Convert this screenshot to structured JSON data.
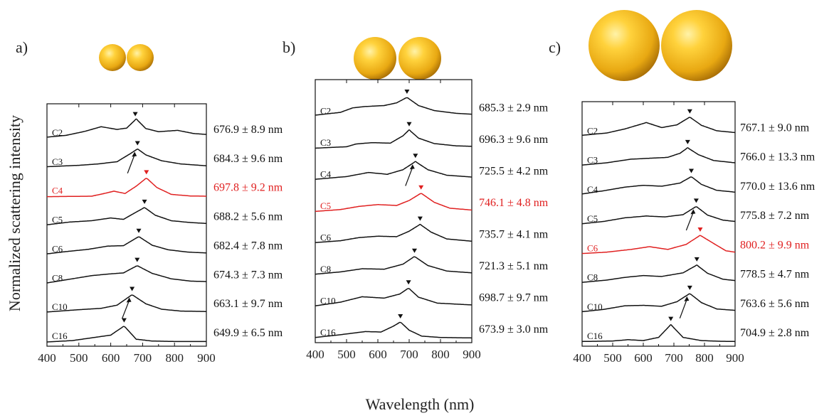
{
  "figure": {
    "ylabel": "Normalized scattering intensity",
    "xlabel": "Wavelength (nm)"
  },
  "colors": {
    "normal": "#111111",
    "highlight": "#e02020",
    "sphere_light": "#ffe680",
    "sphere_mid": "#f2b820",
    "sphere_dark": "#b07808"
  },
  "chart_data": [
    {
      "type": "line",
      "panel_label": "a)",
      "xlim": [
        400,
        900
      ],
      "xticks": [
        400,
        500,
        600,
        700,
        800,
        900
      ],
      "ylabel": "Normalized scattering intensity",
      "xlabel": "Wavelength (nm)",
      "grid": false,
      "series": [
        {
          "name": "C2",
          "peak_label": "676.9 ± 8.9 nm",
          "peak": 677,
          "highlight": false,
          "arrow": false,
          "x": [
            400,
            460,
            520,
            570,
            620,
            650,
            680,
            710,
            750,
            810,
            860,
            900
          ],
          "y": [
            0.06,
            0.14,
            0.32,
            0.52,
            0.4,
            0.46,
            0.86,
            0.44,
            0.3,
            0.36,
            0.22,
            0.18
          ]
        },
        {
          "name": "C3",
          "peak_label": "684.3 ± 9.6 nm",
          "peak": 684,
          "highlight": false,
          "arrow": true,
          "x": [
            400,
            500,
            560,
            620,
            660,
            684,
            710,
            760,
            820,
            900
          ],
          "y": [
            0.04,
            0.1,
            0.16,
            0.26,
            0.6,
            0.82,
            0.56,
            0.3,
            0.16,
            0.08
          ]
        },
        {
          "name": "C4",
          "peak_label": "697.8 ± 9.2 nm",
          "peak": 712,
          "highlight": true,
          "arrow": false,
          "x": [
            400,
            540,
            580,
            610,
            645,
            680,
            712,
            745,
            790,
            850,
            900
          ],
          "y": [
            0.0,
            0.02,
            0.14,
            0.24,
            0.14,
            0.46,
            0.82,
            0.4,
            0.1,
            0.03,
            0.02
          ]
        },
        {
          "name": "C5",
          "peak_label": "688.2 ± 5.6 nm",
          "peak": 706,
          "highlight": false,
          "arrow": false,
          "x": [
            400,
            470,
            540,
            600,
            640,
            670,
            706,
            740,
            790,
            850,
            900
          ],
          "y": [
            0.04,
            0.16,
            0.22,
            0.34,
            0.28,
            0.52,
            0.8,
            0.46,
            0.22,
            0.14,
            0.1
          ]
        },
        {
          "name": "C6",
          "peak_label": "682.4 ± 7.8 nm",
          "peak": 688,
          "highlight": false,
          "arrow": false,
          "x": [
            400,
            460,
            530,
            590,
            640,
            688,
            730,
            780,
            840,
            900
          ],
          "y": [
            0.04,
            0.14,
            0.24,
            0.38,
            0.4,
            0.8,
            0.42,
            0.22,
            0.12,
            0.08
          ]
        },
        {
          "name": "C8",
          "peak_label": "674.3 ± 7.3 nm",
          "peak": 683,
          "highlight": false,
          "arrow": false,
          "x": [
            400,
            470,
            540,
            600,
            640,
            683,
            730,
            790,
            850,
            900
          ],
          "y": [
            0.04,
            0.2,
            0.36,
            0.44,
            0.48,
            0.8,
            0.46,
            0.22,
            0.12,
            0.1
          ]
        },
        {
          "name": "C10",
          "peak_label": "663.1 ± 9.7 nm",
          "peak": 667,
          "highlight": false,
          "arrow": true,
          "x": [
            400,
            500,
            570,
            620,
            667,
            710,
            760,
            820,
            900
          ],
          "y": [
            0.04,
            0.14,
            0.2,
            0.34,
            0.8,
            0.4,
            0.16,
            0.08,
            0.06
          ]
        },
        {
          "name": "C16",
          "peak_label": "649.9 ± 6.5 nm",
          "peak": 642,
          "highlight": false,
          "arrow": false,
          "x": [
            400,
            480,
            540,
            600,
            642,
            680,
            730,
            800,
            900
          ],
          "y": [
            0.0,
            0.06,
            0.18,
            0.3,
            0.7,
            0.12,
            0.04,
            0.02,
            0.02
          ]
        }
      ]
    },
    {
      "type": "line",
      "panel_label": "b)",
      "xlim": [
        400,
        900
      ],
      "xticks": [
        400,
        500,
        600,
        700,
        800,
        900
      ],
      "ylabel": "Normalized scattering intensity",
      "xlabel": "Wavelength (nm)",
      "grid": false,
      "series": [
        {
          "name": "C2",
          "peak_label": "685.3 ± 2.9 nm",
          "peak": 693,
          "highlight": false,
          "arrow": false,
          "x": [
            400,
            480,
            520,
            560,
            620,
            660,
            693,
            730,
            780,
            850,
            900
          ],
          "y": [
            0.08,
            0.2,
            0.4,
            0.46,
            0.5,
            0.62,
            0.86,
            0.5,
            0.28,
            0.16,
            0.12
          ]
        },
        {
          "name": "C3",
          "peak_label": "696.3 ± 9.6 nm",
          "peak": 700,
          "highlight": false,
          "arrow": false,
          "x": [
            400,
            500,
            530,
            580,
            640,
            680,
            700,
            730,
            780,
            850,
            900
          ],
          "y": [
            0.02,
            0.08,
            0.2,
            0.26,
            0.24,
            0.56,
            0.82,
            0.46,
            0.22,
            0.12,
            0.1
          ]
        },
        {
          "name": "C4",
          "peak_label": "725.5 ± 4.2 nm",
          "peak": 720,
          "highlight": false,
          "arrow": true,
          "x": [
            400,
            500,
            570,
            630,
            680,
            720,
            760,
            820,
            900
          ],
          "y": [
            0.04,
            0.16,
            0.34,
            0.26,
            0.46,
            0.82,
            0.46,
            0.22,
            0.14
          ]
        },
        {
          "name": "C5",
          "peak_label": "746.1 ± 4.8 nm",
          "peak": 738,
          "highlight": true,
          "arrow": false,
          "x": [
            400,
            480,
            540,
            600,
            660,
            700,
            738,
            780,
            830,
            900
          ],
          "y": [
            0.02,
            0.1,
            0.24,
            0.32,
            0.28,
            0.5,
            0.82,
            0.42,
            0.16,
            0.08
          ]
        },
        {
          "name": "C6",
          "peak_label": "735.7 ± 4.1 nm",
          "peak": 735,
          "highlight": false,
          "arrow": false,
          "x": [
            400,
            480,
            540,
            600,
            660,
            700,
            735,
            770,
            820,
            900
          ],
          "y": [
            0.04,
            0.12,
            0.26,
            0.32,
            0.3,
            0.54,
            0.84,
            0.5,
            0.2,
            0.1
          ]
        },
        {
          "name": "C8",
          "peak_label": "721.3 ± 5.1 nm",
          "peak": 717,
          "highlight": false,
          "arrow": false,
          "x": [
            400,
            480,
            550,
            620,
            680,
            717,
            760,
            820,
            900
          ],
          "y": [
            0.04,
            0.14,
            0.28,
            0.26,
            0.48,
            0.82,
            0.42,
            0.18,
            0.1
          ]
        },
        {
          "name": "C10",
          "peak_label": "698.7 ± 9.7 nm",
          "peak": 698,
          "highlight": false,
          "arrow": false,
          "x": [
            400,
            480,
            550,
            620,
            670,
            698,
            730,
            790,
            900
          ],
          "y": [
            0.04,
            0.2,
            0.44,
            0.38,
            0.56,
            0.82,
            0.42,
            0.16,
            0.08
          ]
        },
        {
          "name": "C16",
          "peak_label": "673.9 ± 3.0 nm",
          "peak": 672,
          "highlight": false,
          "arrow": false,
          "x": [
            400,
            480,
            560,
            610,
            650,
            672,
            700,
            740,
            800,
            900
          ],
          "y": [
            0.04,
            0.16,
            0.3,
            0.28,
            0.54,
            0.72,
            0.36,
            0.1,
            0.04,
            0.02
          ]
        }
      ]
    },
    {
      "type": "line",
      "panel_label": "c)",
      "xlim": [
        400,
        900
      ],
      "xticks": [
        400,
        500,
        600,
        700,
        800,
        900
      ],
      "ylabel": "Normalized scattering intensity",
      "xlabel": "Wavelength (nm)",
      "grid": false,
      "series": [
        {
          "name": "C2",
          "peak_label": "767.1 ± 9.0 nm",
          "peak": 752,
          "highlight": false,
          "arrow": false,
          "x": [
            400,
            480,
            540,
            610,
            660,
            710,
            752,
            790,
            840,
            900
          ],
          "y": [
            0.06,
            0.16,
            0.34,
            0.62,
            0.4,
            0.52,
            0.86,
            0.5,
            0.26,
            0.18
          ]
        },
        {
          "name": "C3",
          "peak_label": "766.0 ± 13.3 nm",
          "peak": 745,
          "highlight": false,
          "arrow": false,
          "x": [
            400,
            480,
            560,
            620,
            680,
            720,
            745,
            780,
            830,
            900
          ],
          "y": [
            0.04,
            0.14,
            0.3,
            0.34,
            0.38,
            0.56,
            0.8,
            0.5,
            0.24,
            0.14
          ]
        },
        {
          "name": "C4",
          "peak_label": "770.0 ± 13.6 nm",
          "peak": 757,
          "highlight": false,
          "arrow": false,
          "x": [
            400,
            470,
            540,
            600,
            660,
            720,
            757,
            790,
            840,
            900
          ],
          "y": [
            0.06,
            0.2,
            0.36,
            0.44,
            0.4,
            0.54,
            0.82,
            0.48,
            0.22,
            0.14
          ]
        },
        {
          "name": "C5",
          "peak_label": "775.8 ± 7.2 nm",
          "peak": 773,
          "highlight": false,
          "arrow": true,
          "x": [
            400,
            470,
            540,
            610,
            670,
            730,
            773,
            810,
            860,
            900
          ],
          "y": [
            0.04,
            0.14,
            0.3,
            0.38,
            0.34,
            0.44,
            0.8,
            0.42,
            0.2,
            0.14
          ]
        },
        {
          "name": "C6",
          "peak_label": "800.2 ± 9.9 nm",
          "peak": 786,
          "highlight": true,
          "arrow": false,
          "x": [
            400,
            480,
            560,
            620,
            680,
            740,
            786,
            830,
            870,
            900
          ],
          "y": [
            0.02,
            0.08,
            0.2,
            0.32,
            0.2,
            0.42,
            0.82,
            0.46,
            0.14,
            0.08
          ]
        },
        {
          "name": "C8",
          "peak_label": "778.5 ± 4.7 nm",
          "peak": 775,
          "highlight": false,
          "arrow": false,
          "x": [
            400,
            480,
            540,
            600,
            660,
            730,
            775,
            810,
            860,
            900
          ],
          "y": [
            0.04,
            0.14,
            0.26,
            0.34,
            0.3,
            0.46,
            0.8,
            0.44,
            0.18,
            0.12
          ]
        },
        {
          "name": "C10",
          "peak_label": "763.6 ± 5.6 nm",
          "peak": 752,
          "highlight": false,
          "arrow": true,
          "x": [
            400,
            470,
            540,
            600,
            660,
            710,
            752,
            790,
            840,
            900
          ],
          "y": [
            0.04,
            0.14,
            0.3,
            0.32,
            0.28,
            0.48,
            0.84,
            0.44,
            0.16,
            0.1
          ]
        },
        {
          "name": "C16",
          "peak_label": "704.9 ± 2.8 nm",
          "peak": 690,
          "highlight": false,
          "arrow": false,
          "x": [
            400,
            500,
            550,
            600,
            650,
            690,
            730,
            790,
            850,
            900
          ],
          "y": [
            0.02,
            0.04,
            0.1,
            0.06,
            0.2,
            0.76,
            0.2,
            0.06,
            0.03,
            0.02
          ]
        }
      ]
    }
  ]
}
